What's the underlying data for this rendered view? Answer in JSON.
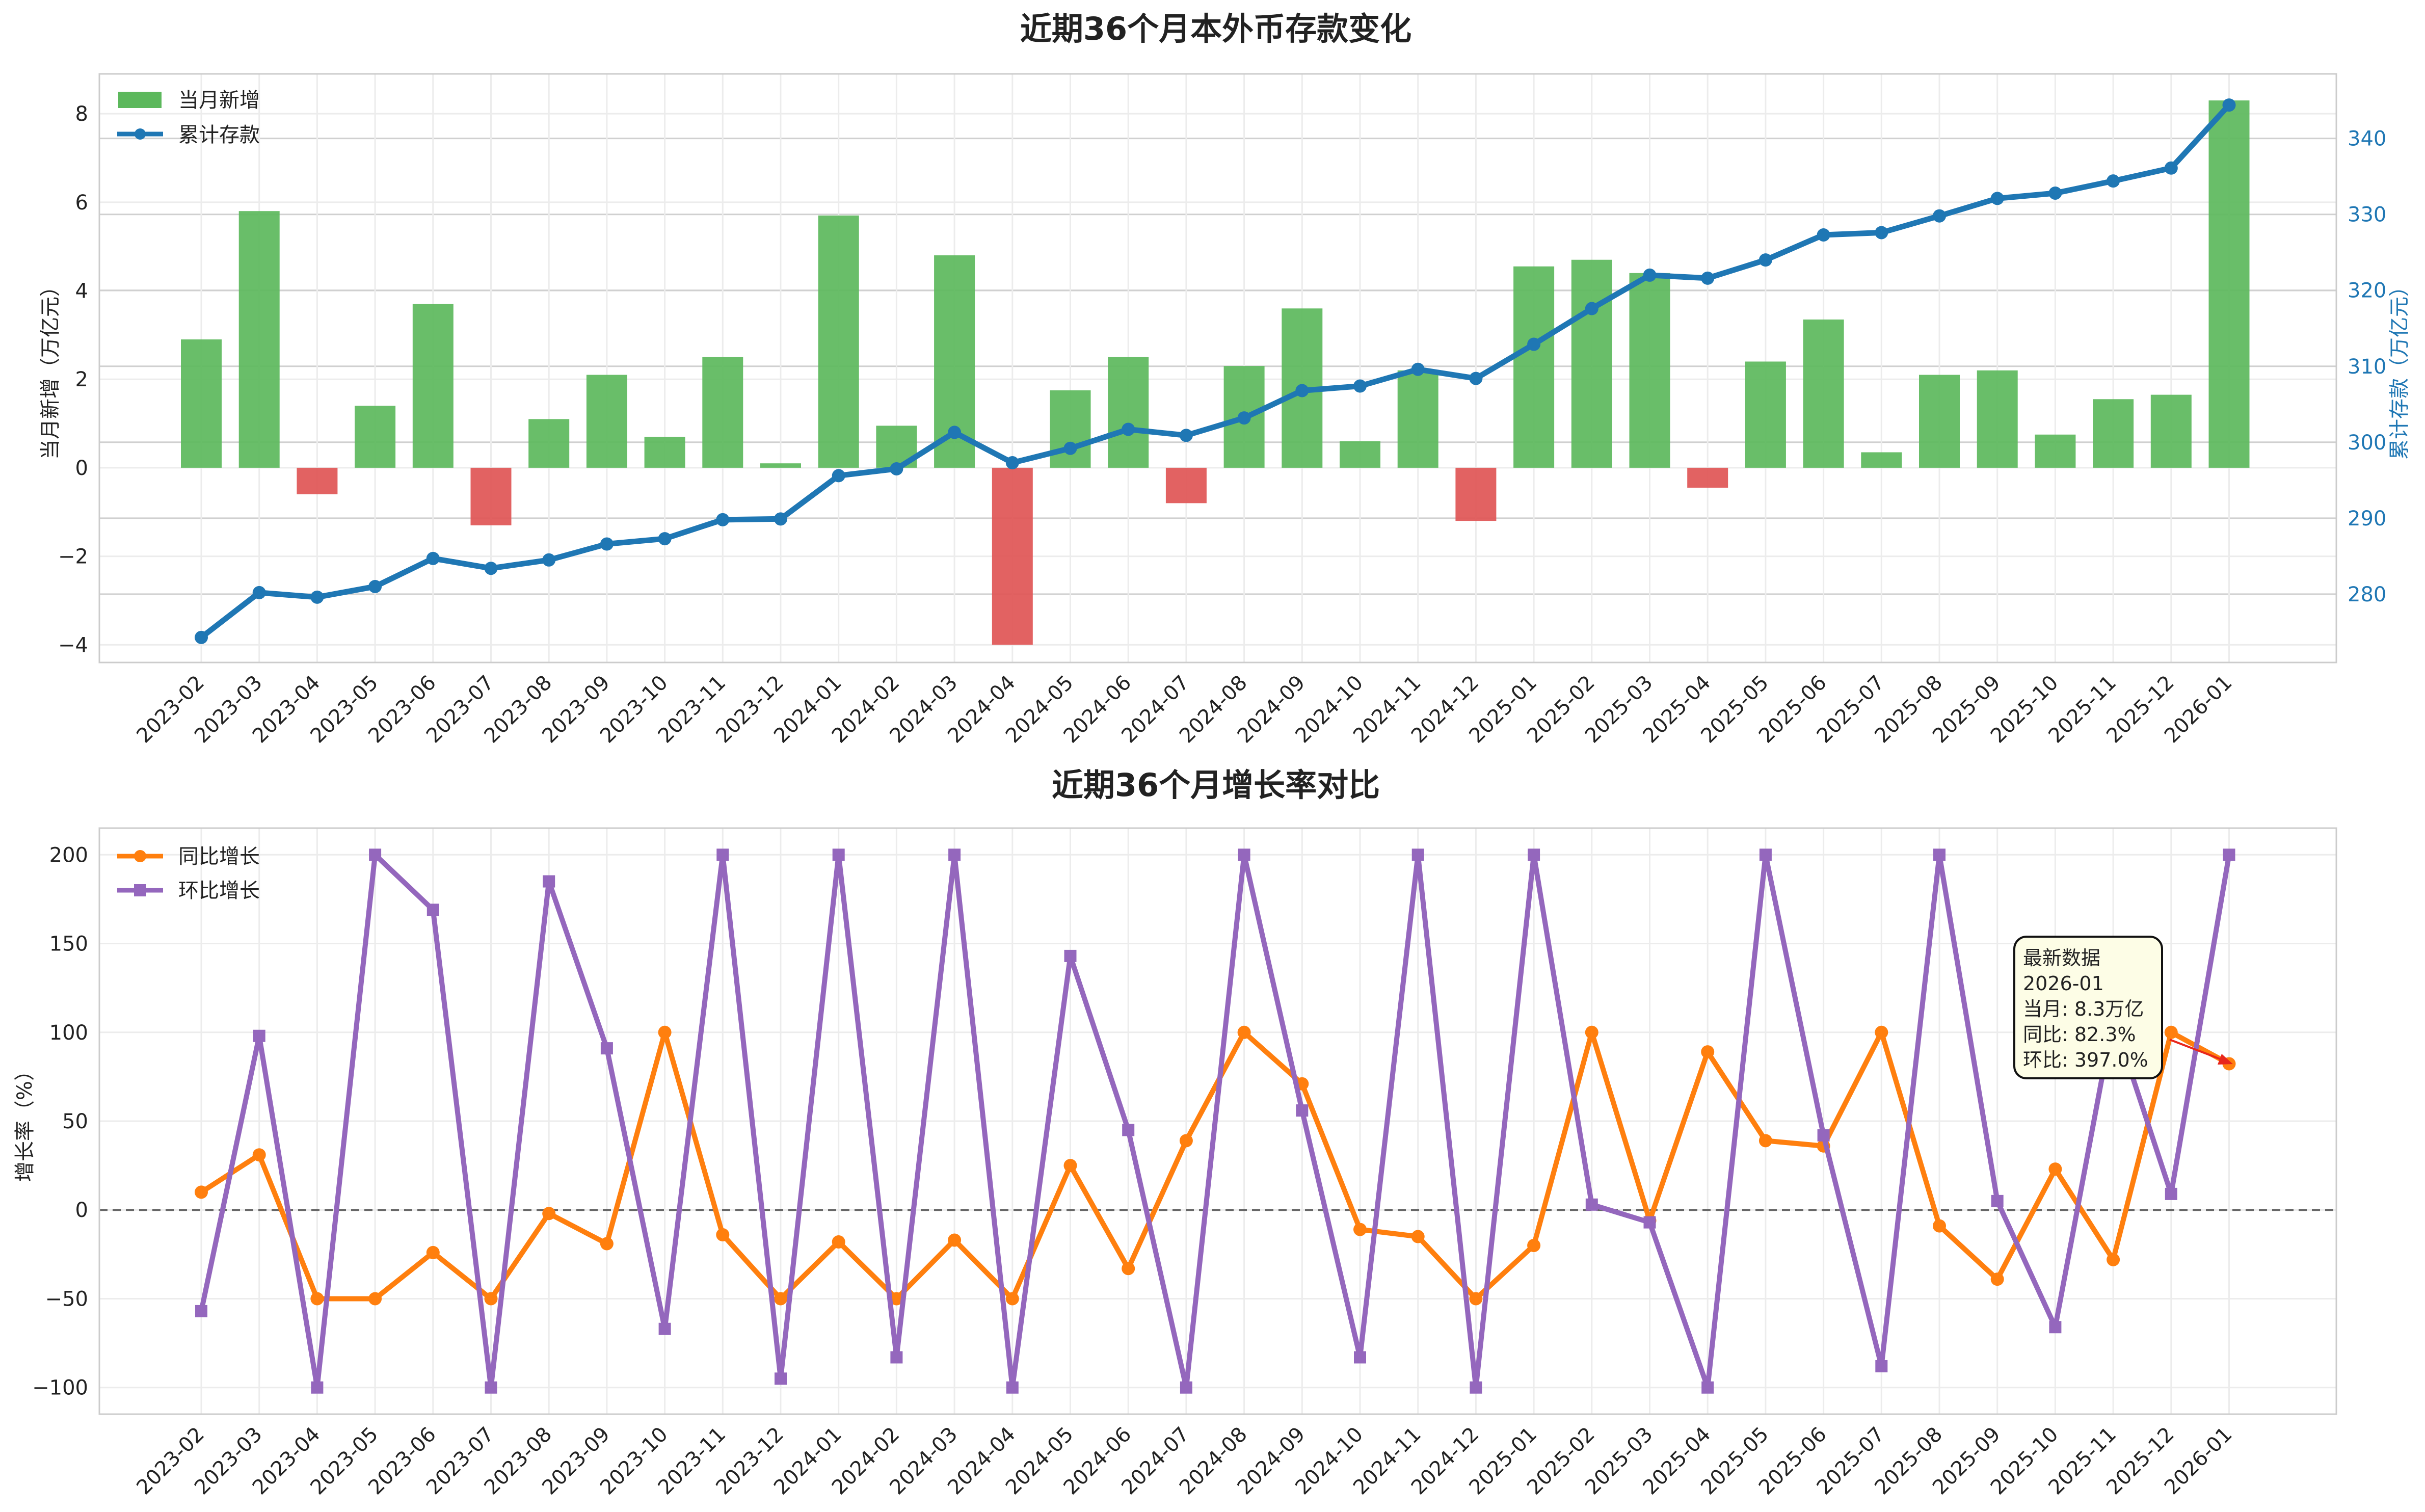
{
  "chart_data": [
    {
      "type": "bar",
      "title": "近期36个月本外币存款变化",
      "xlabel": "",
      "ylabel": "当月新增（万亿元）",
      "ylabel_right": "累计存款（万亿元）",
      "ylim": [
        -4.4,
        8.9
      ],
      "y_ticks": [
        -4,
        -2,
        0,
        2,
        4,
        6,
        8
      ],
      "ylim_right": [
        271,
        348.5
      ],
      "y_ticks_right": [
        280,
        290,
        300,
        310,
        320,
        330,
        340
      ],
      "grid": true,
      "legend_position": "top-left",
      "categories": [
        "2023-02",
        "2023-03",
        "2023-04",
        "2023-05",
        "2023-06",
        "2023-07",
        "2023-08",
        "2023-09",
        "2023-10",
        "2023-11",
        "2023-12",
        "2024-01",
        "2024-02",
        "2024-03",
        "2024-04",
        "2024-05",
        "2024-06",
        "2024-07",
        "2024-08",
        "2024-09",
        "2024-10",
        "2024-11",
        "2024-12",
        "2025-01",
        "2025-02",
        "2025-03",
        "2025-04",
        "2025-05",
        "2025-06",
        "2025-07",
        "2025-08",
        "2025-09",
        "2025-10",
        "2025-11",
        "2025-12",
        "2026-01"
      ],
      "series": [
        {
          "name": "当月新增",
          "kind": "bar",
          "color": "#5cb85c",
          "negative_color": "#e05555",
          "values": [
            2.9,
            5.8,
            -0.6,
            1.4,
            3.7,
            -1.3,
            1.1,
            2.1,
            0.7,
            2.5,
            0.1,
            5.7,
            0.95,
            4.8,
            -4.0,
            1.75,
            2.5,
            -0.8,
            2.3,
            3.6,
            0.6,
            2.2,
            -1.2,
            4.55,
            4.7,
            4.4,
            -0.45,
            2.4,
            3.35,
            0.35,
            2.1,
            2.2,
            0.75,
            1.55,
            1.65,
            8.3
          ]
        },
        {
          "name": "累计存款",
          "kind": "line",
          "axis": "right",
          "color": "#1f77b4",
          "values": [
            274.3,
            280.2,
            279.6,
            281.0,
            284.7,
            283.4,
            284.5,
            286.6,
            287.3,
            289.8,
            289.9,
            295.6,
            296.5,
            301.3,
            297.3,
            299.2,
            301.7,
            300.9,
            303.2,
            306.8,
            307.4,
            309.6,
            308.4,
            312.9,
            317.6,
            322.0,
            321.6,
            324.0,
            327.3,
            327.6,
            329.8,
            332.1,
            332.8,
            334.4,
            336.1,
            344.4
          ]
        }
      ]
    },
    {
      "type": "line",
      "title": "近期36个月增长率对比",
      "xlabel": "",
      "ylabel": "增长率（%）",
      "ylim": [
        -115,
        215
      ],
      "y_ticks": [
        -100,
        -50,
        0,
        50,
        100,
        150,
        200
      ],
      "reference_line": 0,
      "grid": true,
      "legend_position": "top-left",
      "categories": [
        "2023-02",
        "2023-03",
        "2023-04",
        "2023-05",
        "2023-06",
        "2023-07",
        "2023-08",
        "2023-09",
        "2023-10",
        "2023-11",
        "2023-12",
        "2024-01",
        "2024-02",
        "2024-03",
        "2024-04",
        "2024-05",
        "2024-06",
        "2024-07",
        "2024-08",
        "2024-09",
        "2024-10",
        "2024-11",
        "2024-12",
        "2025-01",
        "2025-02",
        "2025-03",
        "2025-04",
        "2025-05",
        "2025-06",
        "2025-07",
        "2025-08",
        "2025-09",
        "2025-10",
        "2025-11",
        "2025-12",
        "2026-01"
      ],
      "series": [
        {
          "name": "同比增长",
          "color": "#ff7f0e",
          "marker": "circle",
          "values": [
            10,
            31,
            -50,
            -50,
            -24,
            -50,
            -2,
            -19,
            100,
            -14,
            -50,
            -18,
            -50,
            -17,
            -50,
            25,
            -33,
            39,
            100,
            71,
            -11,
            -15,
            -50,
            -20,
            100,
            -6,
            89,
            39,
            36,
            100,
            -9,
            -39,
            23,
            -28,
            100,
            82.3
          ]
        },
        {
          "name": "环比增长",
          "color": "#9467bd",
          "marker": "square",
          "values": [
            -57,
            98,
            -100,
            200,
            169,
            -100,
            185,
            91,
            -67,
            200,
            -95,
            200,
            -83,
            200,
            -100,
            143,
            45,
            -100,
            200,
            56,
            -83,
            200,
            -100,
            200,
            3,
            -7,
            -100,
            200,
            42,
            -88,
            200,
            5,
            -66,
            108,
            9,
            200
          ]
        }
      ],
      "annotation": {
        "lines": [
          "最新数据",
          "2026-01",
          "当月: 8.3万亿",
          "同比: 82.3%",
          "环比: 397.0%"
        ],
        "target_category": "2026-01",
        "target_value": 82.3
      }
    }
  ]
}
